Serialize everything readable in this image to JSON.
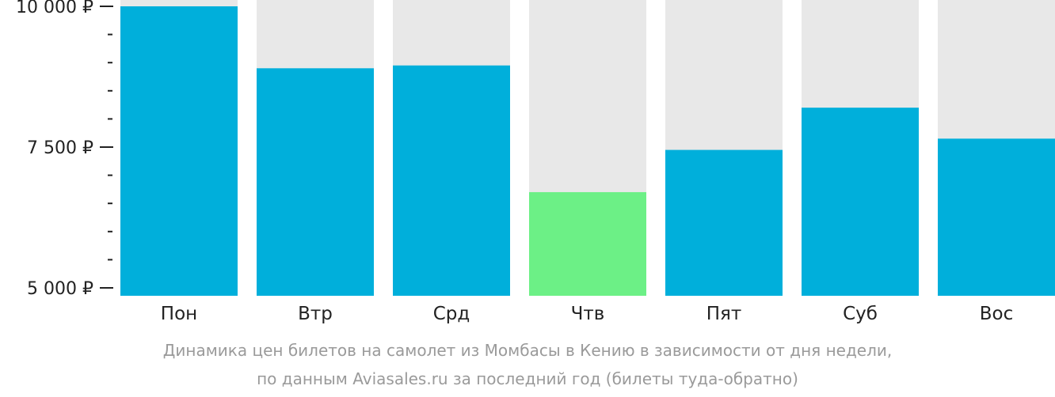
{
  "chart_data": {
    "type": "bar",
    "categories": [
      "Пон",
      "Втр",
      "Срд",
      "Чтв",
      "Пят",
      "Суб",
      "Вос"
    ],
    "values": [
      10000,
      8900,
      8950,
      6700,
      7450,
      8200,
      7650
    ],
    "ylim": [
      5000,
      10000
    ],
    "yticks": [
      {
        "value": 10000,
        "label": "10 000 ₽"
      },
      {
        "value": 7500,
        "label": "7 500 ₽"
      },
      {
        "value": 5000,
        "label": "5 000 ₽"
      }
    ],
    "minor_tick_step": 500,
    "highlight_index": 3,
    "grid": false,
    "colors": {
      "bar": "#00afdb",
      "highlight": "#6cf086",
      "track": "#e8e8e8",
      "axis": "#222222"
    }
  },
  "caption": {
    "line1": "Динамика цен билетов на самолет из Момбасы в Кению в зависимости от дня недели,",
    "line2": "по данным Aviasales.ru за последний год (билеты туда-обратно)"
  }
}
